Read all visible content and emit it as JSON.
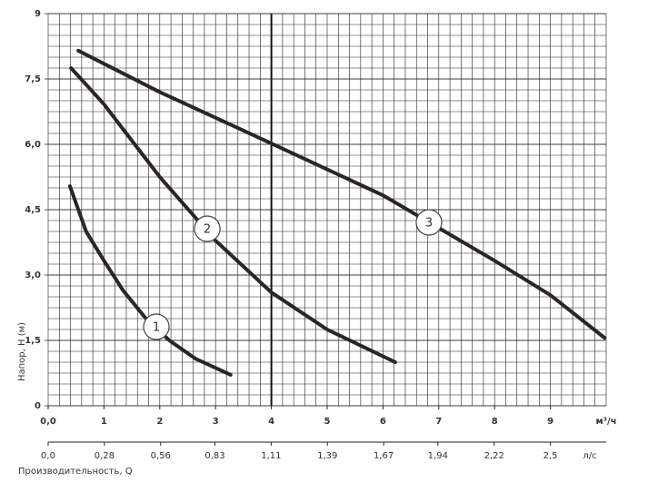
{
  "chart_data": {
    "type": "line",
    "y_label": "Напор, H (м)",
    "x_label": "Производительность, Q",
    "x_unit": "м³/ч",
    "x2_unit": "л/с",
    "xlim": [
      0,
      10
    ],
    "ylim": [
      0,
      9
    ],
    "x2lim": [
      0,
      2.7778
    ],
    "xticks": [
      {
        "value": 0,
        "label": "0,0"
      },
      1,
      2,
      3,
      4,
      5,
      6,
      7,
      8,
      9
    ],
    "yticks": [
      0,
      {
        "value": 1.5,
        "label": "1,5"
      },
      {
        "value": 3,
        "label": "3,0"
      },
      {
        "value": 4.5,
        "label": "4,5"
      },
      {
        "value": 6,
        "label": "6,0"
      },
      {
        "value": 7.5,
        "label": "7,5"
      },
      9
    ],
    "x2ticks": [
      {
        "value": 0,
        "label": "0,0"
      },
      {
        "value": 0.28,
        "label": "0,28"
      },
      {
        "value": 0.56,
        "label": "0,56"
      },
      {
        "value": 0.83,
        "label": "0,83"
      },
      {
        "value": 1.11,
        "label": "1,11"
      },
      {
        "value": 1.39,
        "label": "1,39"
      },
      {
        "value": 1.67,
        "label": "1,67"
      },
      {
        "value": 1.94,
        "label": "1,94"
      },
      {
        "value": 2.22,
        "label": "2,22"
      },
      {
        "value": 2.5,
        "label": "2,5"
      }
    ],
    "grid": true,
    "grid_step_x": 0.2,
    "grid_step_y": 0.25,
    "highlight_x": 4,
    "series": [
      {
        "name": "1",
        "color": "#2b2523",
        "x": [
          0.39,
          0.68,
          1.0,
          1.34,
          1.74,
          2.17,
          2.64,
          3.27
        ],
        "values": [
          5.04,
          4.0,
          3.33,
          2.65,
          2.02,
          1.5,
          1.08,
          0.71
        ]
      },
      {
        "name": "2",
        "color": "#2b2523",
        "x": [
          0.41,
          1.0,
          2.0,
          3.0,
          4.0,
          5.0,
          6.22
        ],
        "values": [
          7.75,
          6.92,
          5.25,
          3.79,
          2.6,
          1.75,
          1.0
        ]
      },
      {
        "name": "3",
        "color": "#2b2523",
        "x": [
          0.54,
          2.0,
          4.0,
          6.0,
          8.0,
          9.0,
          9.97
        ],
        "values": [
          8.15,
          7.2,
          6.02,
          4.83,
          3.33,
          2.54,
          1.56
        ]
      }
    ]
  }
}
